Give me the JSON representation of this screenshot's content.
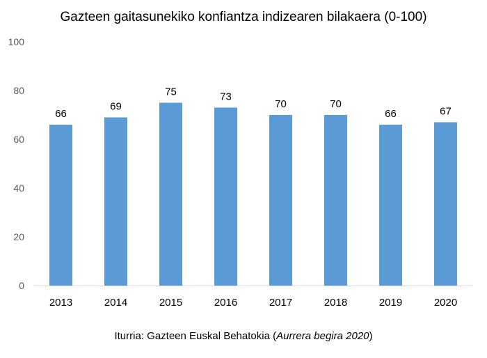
{
  "chart_data": {
    "type": "bar",
    "title": "Gazteen gaitasunekiko konfiantza indizearen bilakaera (0-100)",
    "categories": [
      "2013",
      "2014",
      "2015",
      "2016",
      "2017",
      "2018",
      "2019",
      "2020"
    ],
    "values": [
      66,
      69,
      75,
      73,
      70,
      70,
      66,
      67
    ],
    "data_labels": [
      "66",
      "69",
      "75",
      "73",
      "70",
      "70",
      "66",
      "67"
    ],
    "yticks": [
      "0",
      "20",
      "40",
      "60",
      "80",
      "100"
    ],
    "ylim": [
      0,
      100
    ],
    "xlabel": "",
    "ylabel": "",
    "grid": false,
    "legend": "none",
    "colors": {
      "bar": "#5b9bd5",
      "axis": "#d9d9d9",
      "tick_text": "#595959"
    }
  },
  "source": {
    "prefix": "Iturria: Gazteen Euskal Behatokia (",
    "italic": "Aurrera begira 2020",
    "suffix": ")"
  }
}
